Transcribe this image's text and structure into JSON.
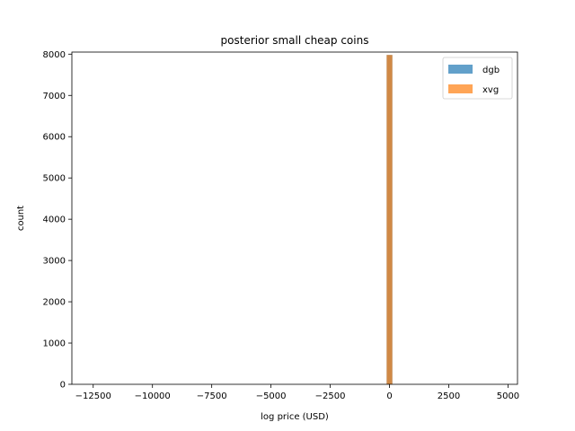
{
  "chart_data": {
    "type": "bar",
    "title": "posterior small cheap coins",
    "xlabel": "log price (USD)",
    "ylabel": "count",
    "xlim": [
      -13400,
      5400
    ],
    "ylim": [
      0,
      8050
    ],
    "xticks": [
      -12500,
      -10000,
      -7500,
      -5000,
      -2500,
      0,
      2500,
      5000
    ],
    "xtick_labels": [
      "−12500",
      "−10000",
      "−7500",
      "−5000",
      "−2500",
      "0",
      "2500",
      "5000"
    ],
    "yticks": [
      0,
      1000,
      2000,
      3000,
      4000,
      5000,
      6000,
      7000,
      8000
    ],
    "ytick_labels": [
      "0",
      "1000",
      "2000",
      "3000",
      "4000",
      "5000",
      "6000",
      "7000",
      "8000"
    ],
    "legend_position": "top-right",
    "series": [
      {
        "name": "dgb",
        "color": "#1f77b4",
        "bins": [
          {
            "x0": -120,
            "x1": 120,
            "count": 7980
          }
        ]
      },
      {
        "name": "xvg",
        "color": "#ff7f0e",
        "bins": [
          {
            "x0": -120,
            "x1": 120,
            "count": 7980
          }
        ]
      }
    ]
  }
}
